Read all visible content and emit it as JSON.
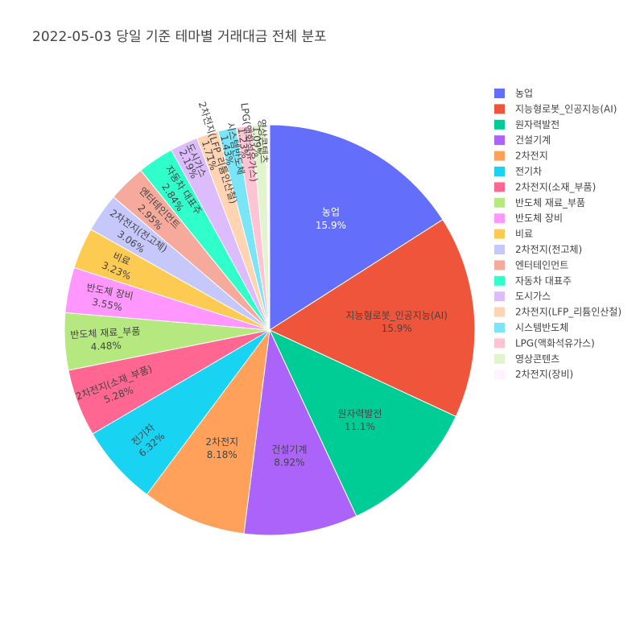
{
  "chart_data": {
    "type": "pie",
    "title": "2022-05-03 당일 기준 테마별 거래대금 전체 분포",
    "legend_position": "right",
    "labels": [
      "농업",
      "지능형로봇_인공지능(AI)",
      "원자력발전",
      "건설기계",
      "2차전지",
      "전기차",
      "2차전지(소재_부품)",
      "반도체 재료_부품",
      "반도체 장비",
      "비료",
      "2차전지(전고체)",
      "엔터테인먼트",
      "자동차 대표주",
      "도시가스",
      "2차전지(LFP_리튬인산철)",
      "시스템반도체",
      "LPG(액화석유가스)",
      "영상콘텐츠",
      "2차전지(장비)"
    ],
    "values": [
      15.9,
      15.9,
      11.1,
      8.92,
      8.18,
      6.32,
      5.28,
      4.48,
      3.55,
      3.23,
      3.06,
      2.95,
      2.84,
      2.19,
      1.71,
      1.43,
      1.23,
      1.09,
      0.28
    ],
    "value_labels": [
      "15.9%",
      "15.9%",
      "11.1%",
      "8.92%",
      "8.18%",
      "6.32%",
      "5.28%",
      "4.48%",
      "3.55%",
      "3.23%",
      "3.06%",
      "2.95%",
      "2.84%",
      "2.19%",
      "1.71%",
      "1.43%",
      "1.23%",
      "1.09%",
      ""
    ],
    "colors": [
      "#636efa",
      "#EF553B",
      "#00cc96",
      "#ab63fa",
      "#FFA15A",
      "#19d3f3",
      "#FF6692",
      "#B6E880",
      "#FF97FF",
      "#FECB52",
      "#c6c8fb",
      "#f6aa9c",
      "#30fecb",
      "#dcbcfc",
      "#ffd4b3",
      "#7ae5f7",
      "#ffc3d3",
      "#e1f4cd",
      "#fff3ff"
    ],
    "label_text_colors": [
      "#ffffff",
      "#444444",
      "#444444",
      "#444444",
      "#444444",
      "#444444",
      "#444444",
      "#444444",
      "#444444",
      "#444444",
      "#444444",
      "#444444",
      "#444444",
      "#444444",
      "#444444",
      "#444444",
      "#444444",
      "#444444",
      "#444444"
    ],
    "direction": "clockwise",
    "start": "12 o'clock"
  }
}
